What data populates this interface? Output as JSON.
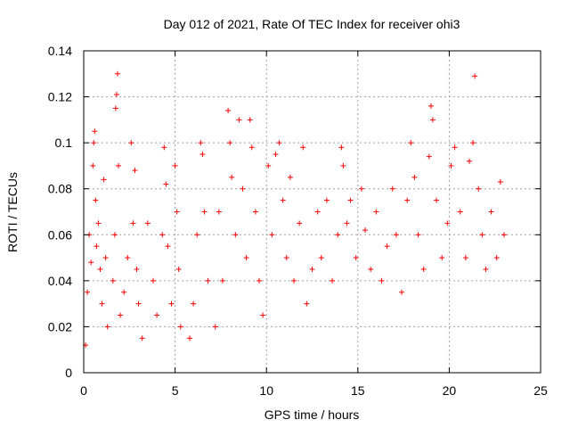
{
  "chart_data": {
    "type": "scatter",
    "title": "Day 012 of 2021, Rate Of TEC Index for receiver ohi3",
    "xlabel": "GPS time / hours",
    "ylabel": "ROTI / TECUs",
    "xlim": [
      0,
      25
    ],
    "ylim": [
      0,
      0.14
    ],
    "x_ticks": [
      0,
      5,
      10,
      15,
      20,
      25
    ],
    "y_ticks": [
      0,
      0.02,
      0.04,
      0.06,
      0.08,
      0.1,
      0.12,
      0.14
    ],
    "x_tick_labels": [
      "0",
      "5",
      "10",
      "15",
      "20",
      "25"
    ],
    "y_tick_labels": [
      "0",
      "0.02",
      "0.04",
      "0.06",
      "0.08",
      "0.1",
      "0.12",
      "0.14"
    ],
    "grid": true,
    "marker": "plus",
    "color": "#ff0000",
    "series": [
      {
        "points": [
          [
            0.1,
            0.012
          ],
          [
            0.2,
            0.035
          ],
          [
            0.3,
            0.06
          ],
          [
            0.4,
            0.048
          ],
          [
            0.5,
            0.09
          ],
          [
            0.55,
            0.1
          ],
          [
            0.6,
            0.105
          ],
          [
            0.65,
            0.075
          ],
          [
            0.7,
            0.055
          ],
          [
            0.8,
            0.065
          ],
          [
            0.9,
            0.045
          ],
          [
            1.0,
            0.03
          ],
          [
            1.1,
            0.084
          ],
          [
            1.2,
            0.05
          ],
          [
            1.3,
            0.02
          ],
          [
            1.6,
            0.04
          ],
          [
            1.7,
            0.06
          ],
          [
            1.75,
            0.115
          ],
          [
            1.8,
            0.121
          ],
          [
            1.85,
            0.13
          ],
          [
            1.9,
            0.09
          ],
          [
            2.0,
            0.025
          ],
          [
            2.2,
            0.035
          ],
          [
            2.4,
            0.05
          ],
          [
            2.6,
            0.1
          ],
          [
            2.7,
            0.065
          ],
          [
            2.8,
            0.088
          ],
          [
            2.9,
            0.045
          ],
          [
            3.0,
            0.03
          ],
          [
            3.2,
            0.015
          ],
          [
            3.5,
            0.065
          ],
          [
            3.8,
            0.04
          ],
          [
            4.0,
            0.025
          ],
          [
            4.3,
            0.06
          ],
          [
            4.4,
            0.098
          ],
          [
            4.5,
            0.082
          ],
          [
            4.6,
            0.055
          ],
          [
            4.8,
            0.03
          ],
          [
            5.0,
            0.09
          ],
          [
            5.1,
            0.07
          ],
          [
            5.2,
            0.045
          ],
          [
            5.3,
            0.02
          ],
          [
            5.8,
            0.015
          ],
          [
            6.0,
            0.03
          ],
          [
            6.2,
            0.06
          ],
          [
            6.4,
            0.1
          ],
          [
            6.5,
            0.095
          ],
          [
            6.6,
            0.07
          ],
          [
            6.8,
            0.04
          ],
          [
            7.2,
            0.02
          ],
          [
            7.4,
            0.07
          ],
          [
            7.6,
            0.04
          ],
          [
            7.9,
            0.114
          ],
          [
            8.0,
            0.1
          ],
          [
            8.1,
            0.085
          ],
          [
            8.3,
            0.06
          ],
          [
            8.5,
            0.11
          ],
          [
            8.7,
            0.08
          ],
          [
            8.9,
            0.05
          ],
          [
            9.1,
            0.11
          ],
          [
            9.2,
            0.098
          ],
          [
            9.4,
            0.07
          ],
          [
            9.6,
            0.04
          ],
          [
            9.8,
            0.025
          ],
          [
            10.1,
            0.09
          ],
          [
            10.3,
            0.06
          ],
          [
            10.5,
            0.095
          ],
          [
            10.7,
            0.1
          ],
          [
            10.9,
            0.075
          ],
          [
            11.1,
            0.05
          ],
          [
            11.3,
            0.085
          ],
          [
            11.5,
            0.04
          ],
          [
            11.8,
            0.065
          ],
          [
            12.0,
            0.098
          ],
          [
            12.2,
            0.03
          ],
          [
            12.5,
            0.045
          ],
          [
            12.8,
            0.07
          ],
          [
            13.0,
            0.05
          ],
          [
            13.3,
            0.075
          ],
          [
            13.6,
            0.04
          ],
          [
            13.9,
            0.06
          ],
          [
            14.1,
            0.098
          ],
          [
            14.2,
            0.09
          ],
          [
            14.4,
            0.065
          ],
          [
            14.6,
            0.075
          ],
          [
            14.9,
            0.05
          ],
          [
            15.2,
            0.08
          ],
          [
            15.4,
            0.062
          ],
          [
            15.7,
            0.045
          ],
          [
            16.0,
            0.07
          ],
          [
            16.3,
            0.04
          ],
          [
            16.6,
            0.055
          ],
          [
            16.9,
            0.08
          ],
          [
            17.1,
            0.06
          ],
          [
            17.4,
            0.035
          ],
          [
            17.7,
            0.075
          ],
          [
            17.9,
            0.1
          ],
          [
            18.1,
            0.085
          ],
          [
            18.3,
            0.06
          ],
          [
            18.6,
            0.045
          ],
          [
            18.9,
            0.094
          ],
          [
            19.0,
            0.116
          ],
          [
            19.1,
            0.11
          ],
          [
            19.3,
            0.075
          ],
          [
            19.6,
            0.05
          ],
          [
            19.9,
            0.065
          ],
          [
            20.1,
            0.09
          ],
          [
            20.3,
            0.098
          ],
          [
            20.6,
            0.07
          ],
          [
            20.9,
            0.05
          ],
          [
            21.1,
            0.092
          ],
          [
            21.3,
            0.1
          ],
          [
            21.4,
            0.129
          ],
          [
            21.6,
            0.08
          ],
          [
            21.8,
            0.06
          ],
          [
            22.0,
            0.045
          ],
          [
            22.3,
            0.07
          ],
          [
            22.6,
            0.05
          ],
          [
            22.8,
            0.083
          ],
          [
            23.0,
            0.06
          ]
        ]
      }
    ]
  }
}
